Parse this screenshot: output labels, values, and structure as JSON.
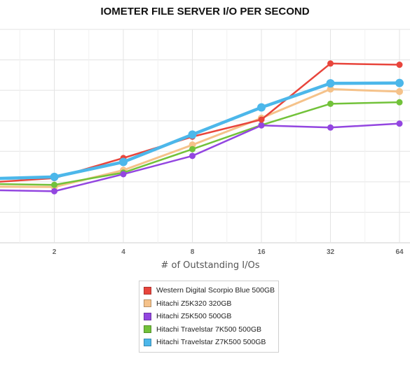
{
  "chart_data": {
    "type": "line",
    "title": "IOMETER FILE SERVER I/O PER SECOND",
    "xlabel": "# of Outstanding I/Os",
    "ylabel": "",
    "categories": [
      "1",
      "2",
      "4",
      "8",
      "16",
      "32",
      "64"
    ],
    "tick_labels": [
      "",
      "2",
      "4",
      "8",
      "16",
      "32",
      "64"
    ],
    "grid": true,
    "legend_position": "bottom",
    "series": [
      {
        "name": "Western Digital Scorpio Blue 500GB",
        "color": "#e8453c",
        "values": [
          197,
          212,
          278,
          348,
          404,
          588,
          584
        ]
      },
      {
        "name": "Hitachi Z5K320 320GB",
        "color": "#f5c28a",
        "values": [
          184,
          183,
          238,
          321,
          409,
          504,
          496
        ]
      },
      {
        "name": "Hitachi Z5K500 500GB",
        "color": "#9346e0",
        "values": [
          173,
          169,
          225,
          285,
          385,
          378,
          391
        ]
      },
      {
        "name": "Hitachi Travelstar 7K500 500GB",
        "color": "#72c23a",
        "values": [
          193,
          190,
          230,
          307,
          386,
          456,
          461
        ]
      },
      {
        "name": "Hitachi Travelstar Z7K500 500GB",
        "color": "#4cb7ea",
        "values": [
          210,
          216,
          265,
          355,
          444,
          523,
          524
        ]
      }
    ]
  }
}
